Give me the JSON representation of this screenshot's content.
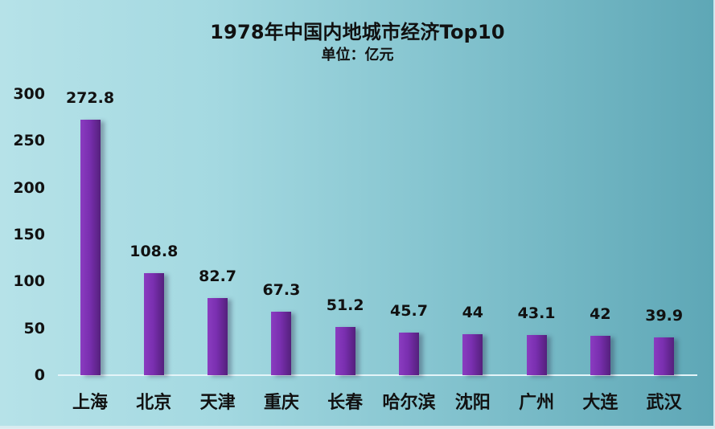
{
  "chart_data": {
    "type": "bar",
    "title": "1978年中国内地城市经济Top10",
    "subtitle": "单位：亿元",
    "xlabel": "",
    "ylabel": "",
    "categories": [
      "上海",
      "北京",
      "天津",
      "重庆",
      "长春",
      "哈尔滨",
      "沈阳",
      "广州",
      "大连",
      "武汉"
    ],
    "values": [
      272.8,
      108.8,
      82.7,
      67.3,
      51.2,
      45.7,
      44,
      43.1,
      42,
      39.9
    ],
    "value_labels": [
      "272.8",
      "108.8",
      "82.7",
      "67.3",
      "51.2",
      "45.7",
      "44",
      "43.1",
      "42",
      "39.9"
    ],
    "ylim": [
      0,
      300
    ],
    "yticks": [
      "0",
      "50",
      "100",
      "150",
      "200",
      "250",
      "300"
    ],
    "grid": false,
    "legend": null,
    "bar_color": "#7a2fb0",
    "background_gradient": [
      "#b6e2e8",
      "#5ea7b6"
    ]
  }
}
